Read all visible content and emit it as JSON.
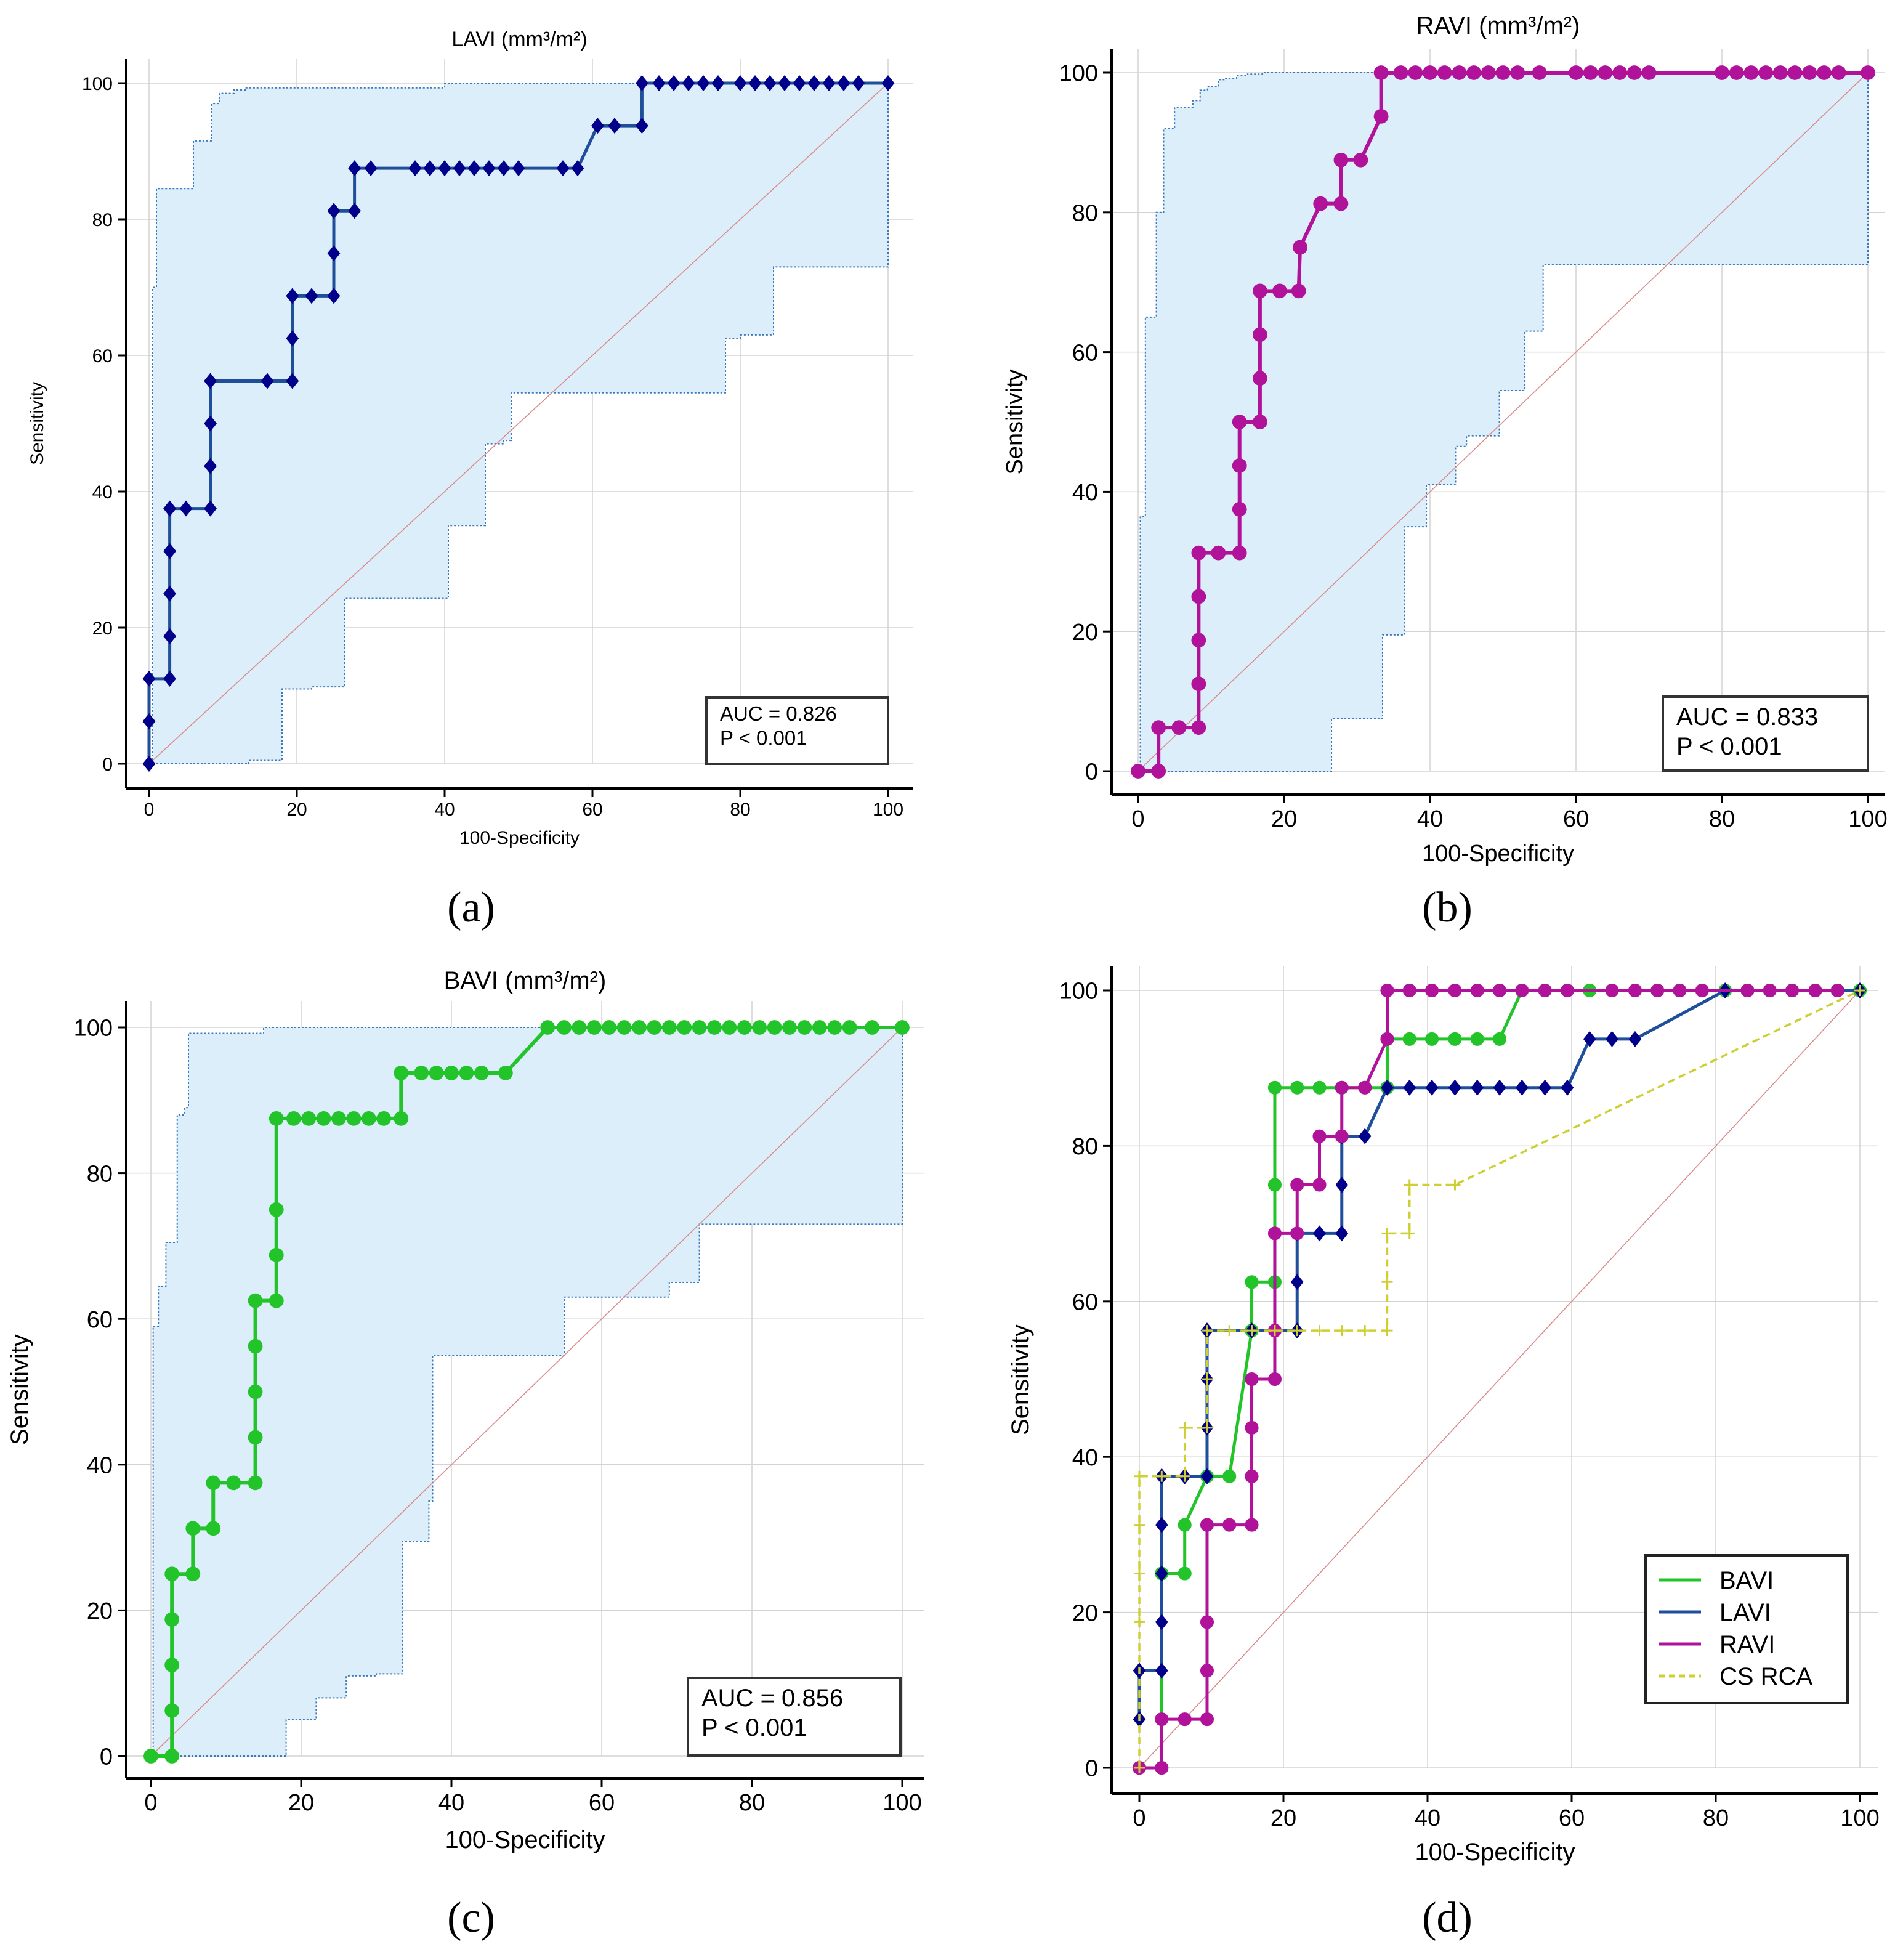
{
  "figure": {
    "panel_labels": [
      "(a)",
      "(b)",
      "(c)",
      "(d)"
    ]
  },
  "colors": {
    "LAVI": "#00008b",
    "LAVI_line": "#1f4e9a",
    "RAVI": "#b0129a",
    "BAVI": "#22c42a",
    "CS_RCA": "#cfcf33",
    "ci_fill": "#ddeefb",
    "ci_edge": "#3a7bbd",
    "diagonal": "#d98a8a",
    "grid": "#d3d3d3"
  },
  "chart_data": [
    {
      "type": "line",
      "panel": "(a)",
      "title": "LAVI (mm³/m²)",
      "xlabel": "100-Specificity",
      "ylabel": "Sensitivity",
      "xlim": [
        0,
        100
      ],
      "ylim": [
        0,
        100
      ],
      "xticks": [
        0,
        20,
        40,
        60,
        80,
        100
      ],
      "yticks": [
        0,
        20,
        40,
        60,
        80,
        100
      ],
      "grid": true,
      "annotation": [
        "AUC = 0.826",
        "P < 0.001"
      ],
      "series": [
        {
          "name": "LAVI",
          "marker": "diamond",
          "x": [
            0,
            0,
            0,
            2.8,
            2.8,
            2.8,
            2.8,
            2.8,
            2.8,
            5,
            8.3,
            8.3,
            8.3,
            8.3,
            16,
            19.4,
            19.4,
            19.4,
            22,
            25,
            25,
            25,
            27.8,
            27.8,
            30,
            36,
            38,
            40,
            42,
            44,
            46,
            48,
            50,
            56,
            58,
            60.7,
            63,
            66.7,
            66.7,
            69,
            71,
            73,
            75,
            77,
            80,
            82,
            84,
            86,
            88,
            90,
            92,
            94,
            96,
            100
          ],
          "y": [
            0,
            6.25,
            12.5,
            12.5,
            18.75,
            25,
            31.25,
            37.5,
            37.5,
            37.5,
            37.5,
            43.75,
            50,
            56.25,
            56.25,
            56.25,
            62.5,
            68.75,
            68.75,
            68.75,
            75,
            81.25,
            81.25,
            87.5,
            87.5,
            87.5,
            87.5,
            87.5,
            87.5,
            87.5,
            87.5,
            87.5,
            87.5,
            87.5,
            87.5,
            93.75,
            93.75,
            93.75,
            100,
            100,
            100,
            100,
            100,
            100,
            100,
            100,
            100,
            100,
            100,
            100,
            100,
            100,
            100,
            100
          ]
        }
      ],
      "ci_upper": {
        "x": [
          0,
          0.5,
          0.5,
          1,
          1,
          6,
          6,
          8.5,
          8.5,
          9.5,
          9.5,
          11.5,
          11.5,
          13,
          13,
          40,
          40,
          100,
          100
        ],
        "y": [
          0,
          0,
          70,
          70,
          84.5,
          84.5,
          91.5,
          91.5,
          97,
          97,
          98.5,
          98.5,
          99,
          99,
          99.3,
          99.3,
          100,
          100,
          100
        ]
      },
      "ci_lower": {
        "x": [
          0,
          13.5,
          13.5,
          18,
          18,
          22,
          22,
          26.5,
          26.5,
          40.5,
          40.5,
          45.5,
          45.5,
          48,
          48,
          49,
          49,
          78,
          78,
          80,
          80,
          84.5,
          84.5,
          100,
          100
        ],
        "y": [
          0,
          0,
          0.5,
          0.5,
          11,
          11,
          11.3,
          11.3,
          24.3,
          24.3,
          35,
          35,
          47,
          47,
          47.5,
          47.5,
          54.5,
          54.5,
          62.5,
          62.5,
          63,
          63,
          73,
          73,
          100
        ]
      }
    },
    {
      "type": "line",
      "panel": "(b)",
      "title": "RAVI (mm³/m²)",
      "xlabel": "100-Specificity",
      "ylabel": "Sensitivity",
      "xlim": [
        0,
        100
      ],
      "ylim": [
        0,
        100
      ],
      "xticks": [
        0,
        20,
        40,
        60,
        80,
        100
      ],
      "yticks": [
        0,
        20,
        40,
        60,
        80,
        100
      ],
      "grid": true,
      "annotation": [
        "AUC = 0.833",
        "P < 0.001"
      ],
      "series": [
        {
          "name": "RAVI",
          "marker": "circle",
          "x": [
            0,
            2.8,
            2.8,
            5.6,
            8.3,
            8.3,
            8.3,
            8.3,
            8.3,
            11,
            13.9,
            13.9,
            13.9,
            13.9,
            16.7,
            16.7,
            16.7,
            16.7,
            19.4,
            22,
            22.2,
            22.2,
            25,
            27.8,
            27.8,
            30.5,
            33.3,
            33.3,
            36,
            38,
            40,
            42,
            44,
            46,
            48,
            50,
            52,
            55,
            60,
            62,
            64,
            66,
            68,
            70,
            80,
            82,
            84,
            86,
            88,
            90,
            92,
            94,
            96,
            100
          ],
          "y": [
            0,
            0,
            6.25,
            6.25,
            6.25,
            12.5,
            18.75,
            25,
            31.25,
            31.25,
            31.25,
            37.5,
            43.75,
            50,
            50,
            56.25,
            62.5,
            68.75,
            68.75,
            68.75,
            75,
            75,
            81.25,
            81.25,
            87.5,
            87.5,
            93.75,
            100,
            100,
            100,
            100,
            100,
            100,
            100,
            100,
            100,
            100,
            100,
            100,
            100,
            100,
            100,
            100,
            100,
            100,
            100,
            100,
            100,
            100,
            100,
            100,
            100,
            100,
            100
          ]
        }
      ],
      "ci_upper": {
        "x": [
          0,
          0.3,
          0.3,
          1,
          1,
          2.5,
          2.5,
          3.5,
          3.5,
          5,
          5,
          7.5,
          7.5,
          8.5,
          8.5,
          9.5,
          9.5,
          11,
          11,
          12,
          12,
          13.5,
          13.5,
          15,
          15,
          17,
          17,
          100,
          100
        ],
        "y": [
          0,
          0,
          36.5,
          36.5,
          65,
          65,
          80,
          80,
          92,
          92,
          95,
          95,
          96,
          96,
          97.5,
          97.5,
          98,
          98,
          99,
          99,
          99.2,
          99.2,
          99.6,
          99.6,
          99.8,
          99.8,
          100,
          100,
          100
        ]
      },
      "ci_lower": {
        "x": [
          0,
          26.5,
          26.5,
          33.5,
          33.5,
          36.5,
          36.5,
          39.5,
          39.5,
          43.5,
          43.5,
          45,
          45,
          49.5,
          49.5,
          53,
          53,
          55.5,
          55.5,
          100,
          100
        ],
        "y": [
          0,
          0,
          7.5,
          7.5,
          19.5,
          19.5,
          35,
          35,
          41,
          41,
          46.5,
          46.5,
          48,
          48,
          54.5,
          54.5,
          63,
          63,
          72.5,
          72.5,
          100
        ]
      }
    },
    {
      "type": "line",
      "panel": "(c)",
      "title": "BAVI (mm³/m²)",
      "xlabel": "100-Specificity",
      "ylabel": "Sensitivity",
      "xlim": [
        0,
        100
      ],
      "ylim": [
        0,
        100
      ],
      "xticks": [
        0,
        20,
        40,
        60,
        80,
        100
      ],
      "yticks": [
        0,
        20,
        40,
        60,
        80,
        100
      ],
      "grid": true,
      "annotation": [
        "AUC = 0.856",
        "P < 0.001"
      ],
      "series": [
        {
          "name": "BAVI",
          "marker": "circle",
          "x": [
            0,
            2.8,
            2.8,
            2.8,
            2.8,
            2.8,
            5.6,
            5.6,
            8.3,
            8.3,
            11,
            13.9,
            13.9,
            13.9,
            13.9,
            13.9,
            16.7,
            16.7,
            16.7,
            16.7,
            19,
            21,
            23,
            25,
            27,
            29,
            31,
            33.3,
            33.3,
            36,
            38,
            40,
            42,
            44,
            47.2,
            52.8,
            55,
            57,
            59,
            61,
            63,
            65,
            67,
            69,
            71,
            73,
            75,
            77,
            79,
            81,
            83,
            85,
            87,
            89,
            91,
            93,
            96,
            100
          ],
          "y": [
            0,
            0,
            6.25,
            12.5,
            18.75,
            25,
            25,
            31.25,
            31.25,
            37.5,
            37.5,
            37.5,
            43.75,
            50,
            56.25,
            62.5,
            62.5,
            68.75,
            75,
            87.5,
            87.5,
            87.5,
            87.5,
            87.5,
            87.5,
            87.5,
            87.5,
            87.5,
            93.75,
            93.75,
            93.75,
            93.75,
            93.75,
            93.75,
            93.75,
            100,
            100,
            100,
            100,
            100,
            100,
            100,
            100,
            100,
            100,
            100,
            100,
            100,
            100,
            100,
            100,
            100,
            100,
            100,
            100,
            100,
            100,
            100
          ]
        }
      ],
      "ci_upper": {
        "x": [
          0,
          0.3,
          0.3,
          1,
          1,
          2,
          2,
          3.5,
          3.5,
          4.5,
          4.5,
          5,
          5,
          15,
          15,
          100,
          100
        ],
        "y": [
          0,
          0,
          59,
          59,
          64.5,
          64.5,
          70.5,
          70.5,
          88,
          88,
          89,
          89,
          99.2,
          99.2,
          100,
          100,
          100
        ]
      },
      "ci_lower": {
        "x": [
          0,
          18,
          18,
          22,
          22,
          26,
          26,
          30,
          30,
          33.5,
          33.5,
          37,
          37,
          37.5,
          37.5,
          55,
          55,
          59,
          59,
          69,
          69,
          73,
          73,
          100,
          100
        ],
        "y": [
          0,
          0,
          5,
          5,
          8,
          8,
          11,
          11,
          11.3,
          11.3,
          29.5,
          29.5,
          35,
          35,
          55,
          55,
          63,
          63,
          63,
          63,
          65,
          65,
          73,
          73,
          100
        ]
      }
    },
    {
      "type": "line",
      "panel": "(d)",
      "title": "",
      "xlabel": "100-Specificity",
      "ylabel": "Sensitivity",
      "xlim": [
        0,
        100
      ],
      "ylim": [
        0,
        100
      ],
      "xticks": [
        0,
        20,
        40,
        60,
        80,
        100
      ],
      "yticks": [
        0,
        20,
        40,
        60,
        80,
        100
      ],
      "grid": true,
      "legend": [
        "BAVI",
        "LAVI",
        "RAVI",
        "CS RCA"
      ],
      "legend_position": "bottom-right",
      "series": [
        {
          "name": "BAVI",
          "marker": "circle",
          "x": [
            0,
            3.1,
            3.1,
            6.3,
            6.3,
            9.4,
            12.5,
            15.6,
            15.6,
            18.8,
            18.8,
            18.8,
            21.9,
            25,
            28.1,
            31.3,
            34.4,
            34.4,
            37.5,
            40.6,
            43.8,
            46.9,
            50,
            53.1,
            56.3,
            62.5,
            65.6,
            68.8,
            71.9,
            75,
            78.1,
            81.3,
            84.4,
            87.5,
            90.6,
            93.8,
            96.9,
            100
          ],
          "y": [
            0,
            0,
            25,
            25,
            31.25,
            37.5,
            37.5,
            56.25,
            62.5,
            62.5,
            75,
            87.5,
            87.5,
            87.5,
            87.5,
            87.5,
            87.5,
            93.75,
            93.75,
            93.75,
            93.75,
            93.75,
            93.75,
            100,
            100,
            100,
            100,
            100,
            100,
            100,
            100,
            100,
            100,
            100,
            100,
            100,
            100,
            100
          ]
        },
        {
          "name": "LAVI",
          "marker": "diamond",
          "x": [
            0,
            0,
            3.1,
            3.1,
            3.1,
            3.1,
            3.1,
            3.1,
            6.3,
            9.4,
            9.4,
            9.4,
            9.4,
            15.6,
            18.8,
            21.9,
            21.9,
            21.9,
            25,
            28.1,
            28.1,
            28.1,
            31.3,
            34.4,
            37.5,
            40.6,
            43.8,
            46.9,
            50,
            53.1,
            56.3,
            59.4,
            62.5,
            65.6,
            68.8,
            81.3,
            100
          ],
          "y": [
            6.25,
            12.5,
            12.5,
            18.75,
            25,
            31.25,
            37.5,
            37.5,
            37.5,
            37.5,
            43.75,
            50,
            56.25,
            56.25,
            56.25,
            56.25,
            62.5,
            68.75,
            68.75,
            68.75,
            75,
            81.25,
            81.25,
            87.5,
            87.5,
            87.5,
            87.5,
            87.5,
            87.5,
            87.5,
            87.5,
            87.5,
            93.75,
            93.75,
            93.75,
            100,
            100
          ]
        },
        {
          "name": "RAVI",
          "marker": "circle",
          "x": [
            0,
            3.1,
            3.1,
            6.3,
            9.4,
            9.4,
            9.4,
            9.4,
            12.5,
            15.6,
            15.6,
            15.6,
            15.6,
            18.8,
            18.8,
            18.8,
            21.9,
            21.9,
            25,
            25,
            28.1,
            28.1,
            31.3,
            34.4,
            34.4,
            37.5,
            40.6,
            43.8,
            46.9,
            50,
            53.1,
            56.3,
            59.4,
            65.6,
            68.8,
            71.9,
            75,
            78.1,
            84.4,
            87.5,
            90.6,
            93.8,
            96.9
          ],
          "y": [
            0,
            0,
            6.25,
            6.25,
            6.25,
            12.5,
            18.75,
            31.25,
            31.25,
            31.25,
            37.5,
            43.75,
            50,
            50,
            56.25,
            68.75,
            68.75,
            75,
            75,
            81.25,
            81.25,
            87.5,
            87.5,
            93.75,
            100,
            100,
            100,
            100,
            100,
            100,
            100,
            100,
            100,
            100,
            100,
            100,
            100,
            100,
            100,
            100,
            100,
            100,
            100
          ]
        },
        {
          "name": "CS RCA",
          "marker": "plus",
          "dashed": true,
          "x": [
            0,
            0,
            0,
            0,
            0,
            3.1,
            6.3,
            6.3,
            9.4,
            9.4,
            9.4,
            12.5,
            15.6,
            18.8,
            21.9,
            25,
            28.1,
            31.3,
            34.4,
            34.4,
            34.4,
            37.5,
            37.5,
            43.8,
            100
          ],
          "y": [
            0,
            18.75,
            25,
            31.25,
            37.5,
            37.5,
            37.5,
            43.75,
            43.75,
            50,
            56.25,
            56.25,
            56.25,
            56.25,
            56.25,
            56.25,
            56.25,
            56.25,
            56.25,
            62.5,
            68.75,
            68.75,
            75,
            75,
            100
          ]
        }
      ]
    }
  ]
}
